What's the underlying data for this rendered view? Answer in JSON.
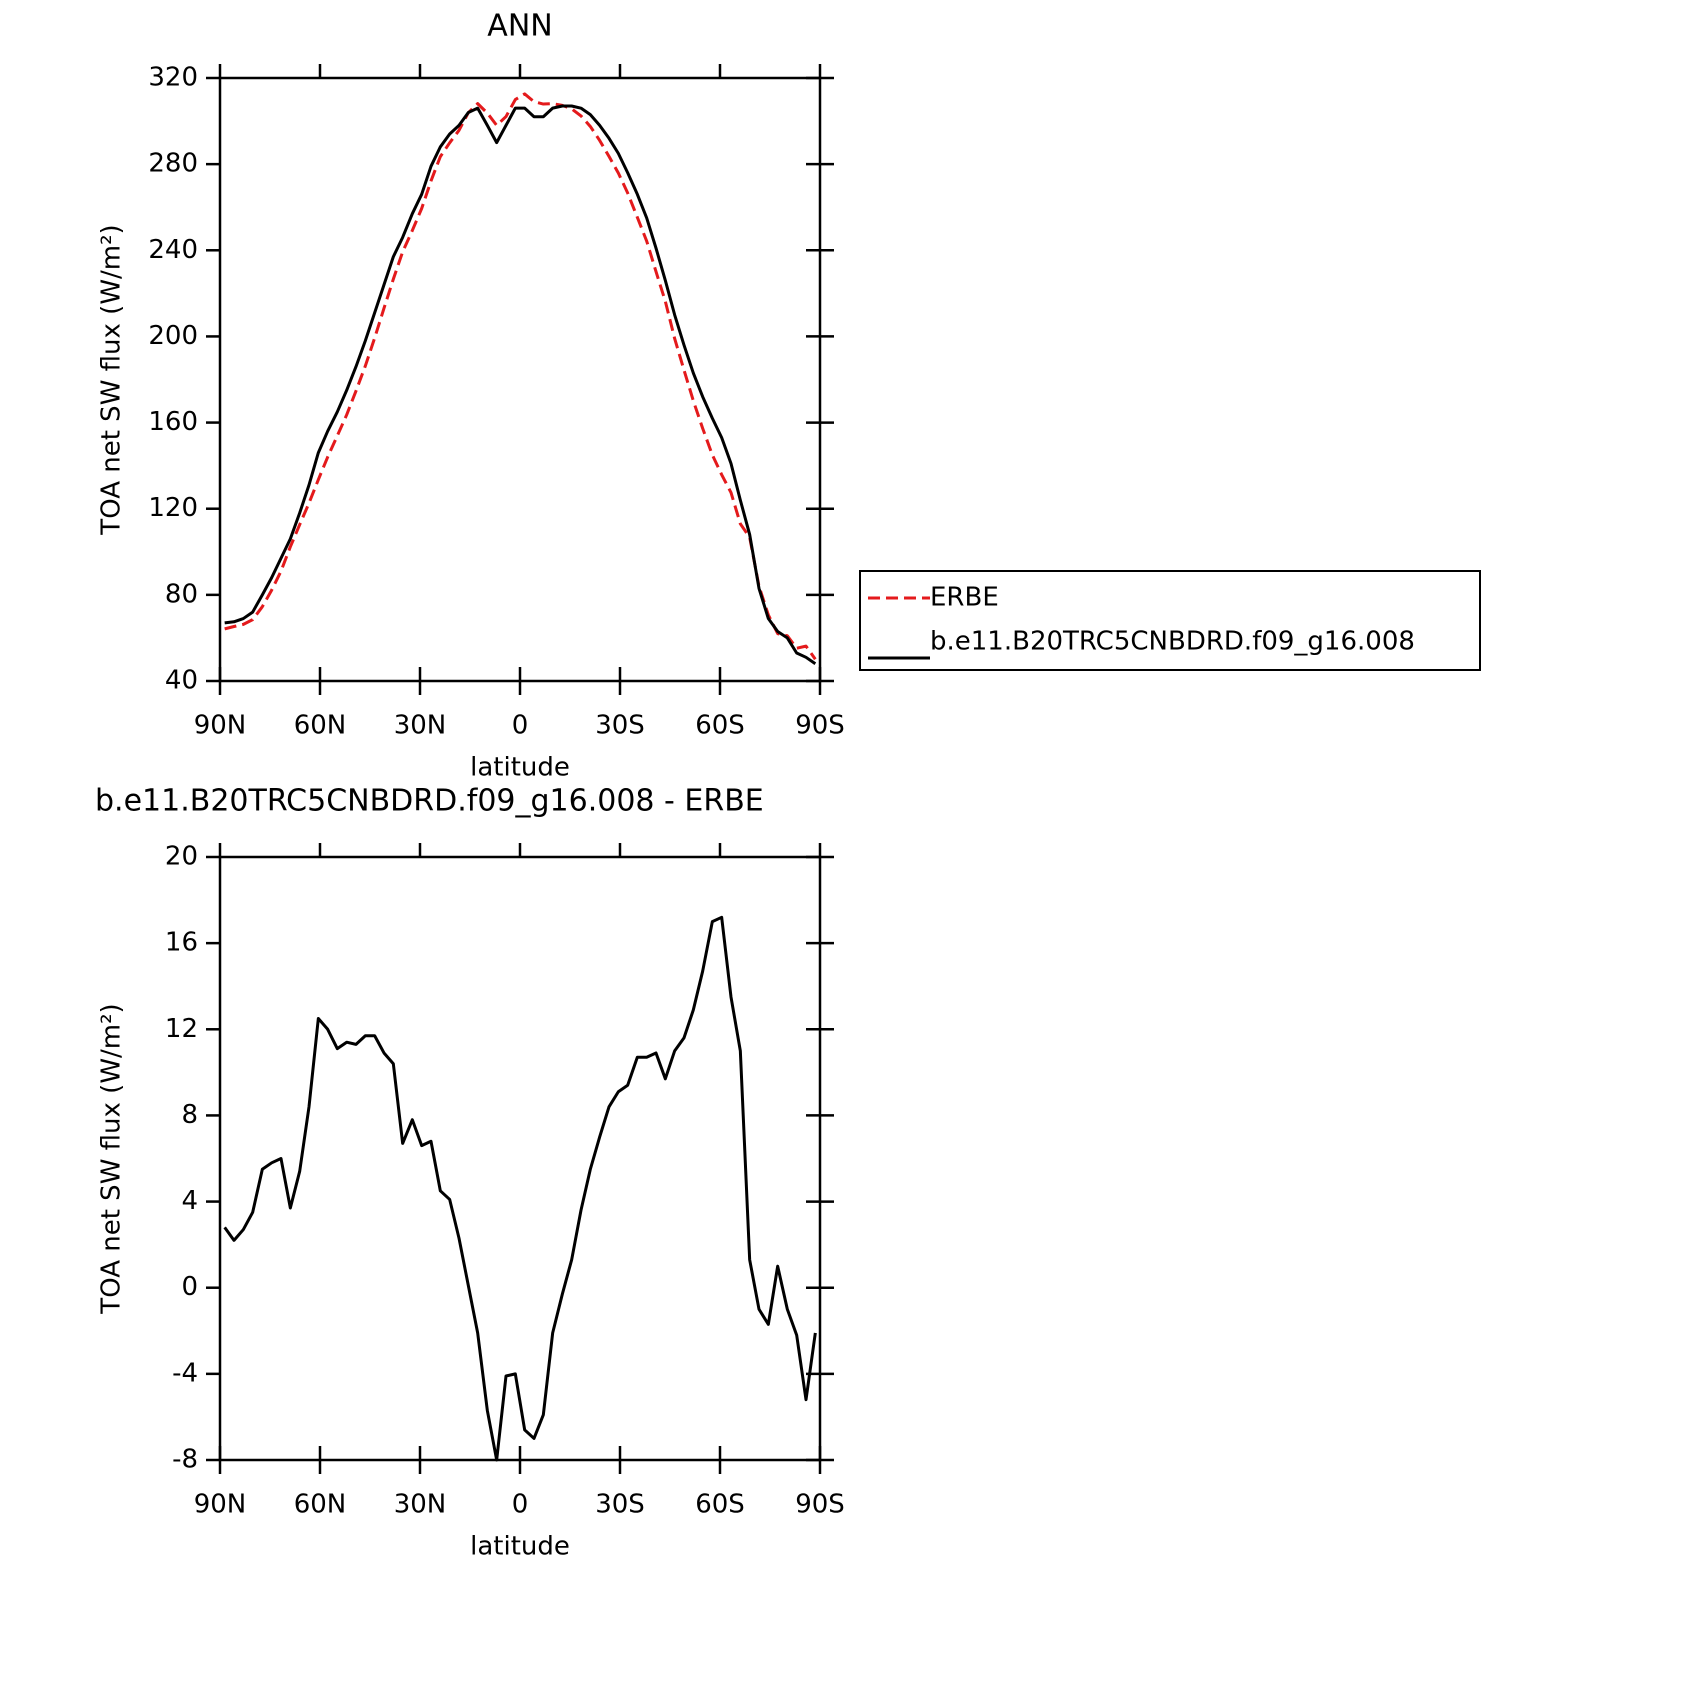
{
  "chart_data": [
    {
      "type": "line",
      "title": "ANN",
      "xlabel": "latitude",
      "ylabel": "TOA net SW flux (W/m²)",
      "x": [
        88.6,
        85.8,
        83.0,
        80.2,
        77.3,
        74.5,
        71.7,
        68.9,
        66.1,
        63.3,
        60.5,
        57.7,
        54.8,
        52.0,
        49.2,
        46.4,
        43.6,
        40.8,
        38.0,
        35.2,
        32.3,
        29.5,
        26.7,
        23.9,
        21.1,
        18.3,
        15.5,
        12.7,
        9.8,
        7.0,
        4.2,
        1.4,
        -1.4,
        -4.2,
        -7.0,
        -9.8,
        -12.7,
        -15.5,
        -18.3,
        -21.1,
        -23.9,
        -26.7,
        -29.5,
        -32.3,
        -35.2,
        -38.0,
        -40.8,
        -43.6,
        -46.4,
        -49.2,
        -52.0,
        -54.8,
        -57.7,
        -60.5,
        -63.3,
        -66.1,
        -68.9,
        -71.7,
        -74.5,
        -77.3,
        -80.2,
        -83.0,
        -85.8,
        -88.6
      ],
      "series": [
        {
          "name": "ERBE",
          "color": "#e41a1c",
          "linestyle": "dashed",
          "values": [
            64.2,
            65.3,
            66.3,
            68.5,
            74.5,
            82.2,
            91,
            102.3,
            112.6,
            122.6,
            133.5,
            144,
            153.9,
            163.6,
            174.7,
            186.3,
            199.3,
            213.1,
            226.6,
            239.3,
            249.2,
            259.4,
            272.2,
            283.5,
            289.9,
            295.7,
            303.9,
            308.1,
            303.7,
            298,
            302.1,
            310,
            312.6,
            309,
            307.9,
            308.1,
            307.3,
            305.7,
            302.4,
            297.5,
            291,
            283.6,
            275.9,
            266.6,
            255.3,
            244.3,
            230.1,
            216.3,
            199,
            184.4,
            170.1,
            157.3,
            145,
            135.8,
            127.5,
            113,
            106.7,
            84,
            70.7,
            62,
            61,
            55.2,
            56.2,
            50.1
          ]
        },
        {
          "name": "b.e11.B20TRC5CNBDRD.f09_g16.008",
          "color": "#000000",
          "linestyle": "solid",
          "values": [
            67,
            67.5,
            69,
            72,
            80,
            88,
            97,
            106,
            118,
            131,
            146,
            156,
            165,
            175,
            186,
            198,
            211,
            224,
            237,
            246,
            257,
            266,
            279,
            288,
            294,
            298,
            304,
            306,
            298,
            290,
            298,
            306,
            306,
            302,
            302,
            306,
            307,
            307,
            306,
            303,
            298,
            292,
            285,
            276,
            266,
            255,
            241,
            226,
            210,
            196,
            183,
            172,
            162,
            153,
            141,
            124,
            108,
            83,
            69,
            63,
            60,
            53,
            51,
            48
          ]
        }
      ],
      "xlim": [
        90,
        -90
      ],
      "xticks": [
        {
          "value": 90,
          "label": "90N"
        },
        {
          "value": 60,
          "label": "60N"
        },
        {
          "value": 30,
          "label": "30N"
        },
        0,
        {
          "value": -30,
          "label": "30S"
        },
        {
          "value": -60,
          "label": "60S"
        },
        {
          "value": -90,
          "label": "90S"
        }
      ],
      "ylim": [
        40,
        320
      ],
      "yticks": [
        40,
        80,
        120,
        160,
        200,
        240,
        280,
        320
      ],
      "legend": "right"
    },
    {
      "type": "line",
      "title": "b.e11.B20TRC5CNBDRD.f09_g16.008 - ERBE",
      "xlabel": "latitude",
      "ylabel": "TOA net SW flux (W/m²)",
      "x": [
        88.6,
        85.8,
        83.0,
        80.2,
        77.3,
        74.5,
        71.7,
        68.9,
        66.1,
        63.3,
        60.5,
        57.7,
        54.8,
        52.0,
        49.2,
        46.4,
        43.6,
        40.8,
        38.0,
        35.2,
        32.3,
        29.5,
        26.7,
        23.9,
        21.1,
        18.3,
        15.5,
        12.7,
        9.8,
        7.0,
        4.2,
        1.4,
        -1.4,
        -4.2,
        -7.0,
        -9.8,
        -12.7,
        -15.5,
        -18.3,
        -21.1,
        -23.9,
        -26.7,
        -29.5,
        -32.3,
        -35.2,
        -38.0,
        -40.8,
        -43.6,
        -46.4,
        -49.2,
        -52.0,
        -54.8,
        -57.7,
        -60.5,
        -63.3,
        -66.1,
        -68.9,
        -71.7,
        -74.5,
        -77.3,
        -80.2,
        -83.0,
        -85.8,
        -88.6
      ],
      "values": [
        2.8,
        2.2,
        2.7,
        3.5,
        5.5,
        5.8,
        6.0,
        3.7,
        5.4,
        8.4,
        12.5,
        12.0,
        11.1,
        11.4,
        11.3,
        11.7,
        11.7,
        10.9,
        10.4,
        6.7,
        7.8,
        6.6,
        6.8,
        4.5,
        4.1,
        2.3,
        0.1,
        -2.1,
        -5.7,
        -8.0,
        -4.1,
        -4.0,
        -6.6,
        -7.0,
        -5.9,
        -2.1,
        -0.3,
        1.3,
        3.6,
        5.5,
        7.0,
        8.4,
        9.1,
        9.4,
        10.7,
        10.7,
        10.9,
        9.7,
        11.0,
        11.6,
        12.9,
        14.7,
        17.0,
        17.2,
        13.5,
        11.0,
        1.3,
        -1.0,
        -1.7,
        1.0,
        -1.0,
        -2.2,
        -5.2,
        -2.1
      ],
      "color": "#000000",
      "xlim": [
        90,
        -90
      ],
      "xticks": [
        {
          "value": 90,
          "label": "90N"
        },
        {
          "value": 60,
          "label": "60N"
        },
        {
          "value": 30,
          "label": "30N"
        },
        0,
        {
          "value": -30,
          "label": "30S"
        },
        {
          "value": -60,
          "label": "60S"
        },
        {
          "value": -90,
          "label": "90S"
        }
      ],
      "ylim": [
        -8,
        20
      ],
      "yticks": [
        -8,
        -4,
        0,
        4,
        8,
        12,
        16,
        20
      ]
    }
  ]
}
